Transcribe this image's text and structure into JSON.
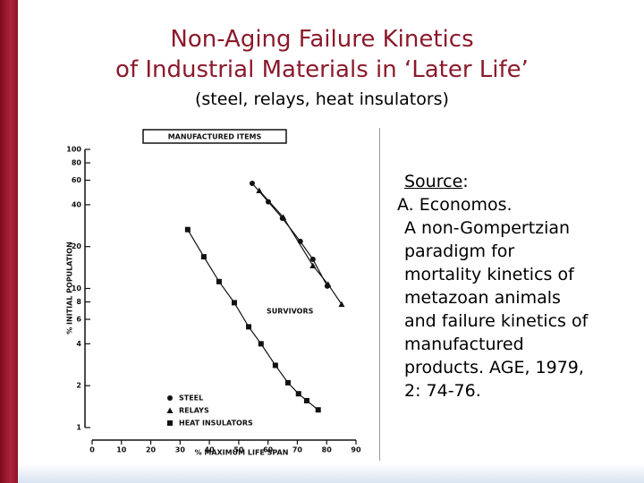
{
  "slide": {
    "title_lines": [
      "Non-Aging Failure Kinetics",
      "of Industrial Materials in ‘Later Life’"
    ],
    "subtitle": "(steel, relays, heat insulators)",
    "source": {
      "label": "Source",
      "lines": [
        "A. Economos.",
        "A non-Gompertzian",
        "paradigm for",
        "mortality kinetics of",
        "metazoan animals",
        "and failure kinetics of",
        "manufactured",
        "products. AGE, 1979,",
        "2: 74-76."
      ]
    }
  },
  "chart_data": {
    "type": "scatter",
    "title": "MANUFACTURED ITEMS",
    "annotation": "SURVIVORS",
    "x_label": "% MAXIMUM LIFE SPAN",
    "y_label": "% INITIAL POPULATION",
    "log_y": true,
    "xlim": [
      0,
      90
    ],
    "ylim": [
      1,
      100
    ],
    "xticks": [
      0,
      10,
      20,
      30,
      40,
      50,
      60,
      70,
      80,
      90
    ],
    "yticks": [
      1,
      2,
      4,
      6,
      8,
      10,
      20,
      40,
      60,
      80,
      100
    ],
    "series": [
      {
        "name": "STEEL",
        "marker": "circle",
        "color": "#111111",
        "x": [
          54.6,
          60.1,
          64.9,
          71.0,
          75.3,
          80.2
        ],
        "values": [
          57,
          42,
          32,
          21.8,
          16.2,
          10.4
        ]
      },
      {
        "name": "RELAYS",
        "marker": "triangle",
        "color": "#111111",
        "x": [
          57.0,
          65.2,
          75.3,
          80.5,
          85.1
        ],
        "values": [
          50.6,
          32.5,
          14.6,
          10.7,
          7.7
        ]
      },
      {
        "name": "HEAT INSULATORS",
        "marker": "square",
        "color": "#111111",
        "x": [
          32.6,
          38.1,
          43.3,
          48.5,
          53.4,
          57.6,
          62.5,
          66.8,
          70.4,
          73.2,
          77.1
        ],
        "values": [
          26.5,
          16.9,
          11.2,
          7.9,
          5.3,
          4.0,
          2.8,
          2.1,
          1.75,
          1.56,
          1.34
        ]
      }
    ]
  }
}
